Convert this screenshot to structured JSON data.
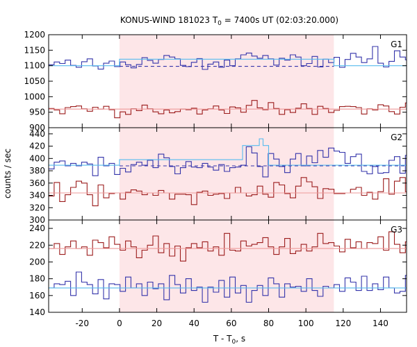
{
  "chart_data": {
    "type": "line",
    "title": {
      "main": "KONUS-WIND 181023 T",
      "sub": "0",
      "rest": " = 7400s UT (02:03:20.000)"
    },
    "xlabel": {
      "main": "T - T",
      "sub": "0",
      "rest": ", s"
    },
    "ylabel": "counts / sec",
    "xlim": [
      -38,
      154
    ],
    "x_ticks": [
      -20,
      0,
      20,
      40,
      60,
      80,
      100,
      120,
      140
    ],
    "shaded_interval": [
      0,
      115
    ],
    "colors": {
      "blue": "#3333aa",
      "red": "#9b1b1b",
      "cyan": "#55bbee",
      "pink": "#ee9999",
      "shade": "#fde6e8"
    },
    "panels": [
      {
        "label": "G1",
        "ylim": [
          900,
          1200
        ],
        "y_ticks": [
          900,
          950,
          1000,
          1050,
          1100,
          1150,
          1200
        ],
        "step": 2.944,
        "series": [
          {
            "color": "blue",
            "values": [
              1103,
              1112,
              1107,
              1118,
              1101,
              1095,
              1113,
              1122,
              1099,
              1089,
              1108,
              1115,
              1097,
              1112,
              1103,
              1093,
              1104,
              1126,
              1117,
              1108,
              1120,
              1133,
              1128,
              1122,
              1101,
              1097,
              1111,
              1123,
              1088,
              1105,
              1112,
              1095,
              1118,
              1100,
              1122,
              1135,
              1141,
              1131,
              1124,
              1133,
              1122,
              1102,
              1124,
              1118,
              1135,
              1128,
              1100,
              1107,
              1130,
              1096,
              1121,
              1110,
              1127,
              1095,
              1120,
              1140,
              1128,
              1110,
              1122,
              1162,
              1108,
              1096,
              1114,
              1148,
              1128,
              1119,
              1144,
              1109,
              1126,
              1133,
              1107,
              1140,
              1113,
              1101,
              1122,
              1137,
              1129,
              1099,
              1115,
              1131,
              1122,
              1138,
              1128,
              1100,
              1117,
              1104,
              1130,
              1118,
              1095,
              1085,
              1102,
              1094,
              1106,
              1098,
              1113,
              1090,
              1109,
              1095,
              1098,
              1118,
              1084,
              1108,
              1090,
              1116,
              1102,
              1075,
              1099,
              1107,
              1119,
              1076,
              1110,
              1085,
              1104,
              1119,
              1097,
              1078,
              1116,
              1081,
              1113,
              1092,
              1106
            ]
          },
          {
            "color": "red",
            "values": [
              962,
              957,
              945,
              965,
              968,
              970,
              961,
              953,
              966,
              960,
              969,
              958,
              932,
              951,
              943,
              961,
              955,
              973,
              961,
              951,
              945,
              957,
              948,
              952,
              960,
              958,
              963,
              944,
              957,
              961,
              970,
              957,
              946,
              967,
              964,
              950,
              972,
              988,
              964,
              958,
              981,
              962,
              943,
              958,
              949,
              963,
              977,
              962,
              943,
              969,
              962,
              949,
              956,
              968,
              969,
              968,
              965,
              944,
              961,
              957,
              974,
              970,
              952,
              944,
              966,
              980,
              954,
              968,
              965,
              954,
              951,
              970,
              945,
              962,
              954,
              985,
              962,
              937,
              966,
              984,
              961,
              946,
              958,
              947,
              982,
              974,
              963,
              951,
              976,
              970,
              945,
              960,
              953,
              940,
              982,
              953,
              969,
              945,
              958,
              965,
              942,
              958,
              955,
              968,
              962,
              970,
              961,
              949,
              963,
              958,
              955,
              962,
              970,
              948,
              981,
              963,
              941,
              966,
              958,
              970,
              977
            ]
          },
          {
            "color": "cyan",
            "segments": [
              [
                -38,
                0,
                1100
              ],
              [
                0,
                115,
                1121
              ],
              [
                115,
                154,
                1100
              ]
            ]
          },
          {
            "color": "blue",
            "dashed": true,
            "segments": [
              [
                0,
                115,
                1098
              ]
            ]
          },
          {
            "color": "pink",
            "segments": [
              [
                -38,
                154,
                960
              ]
            ]
          }
        ]
      },
      {
        "label": "G2",
        "ylim": [
          300,
          450
        ],
        "y_ticks": [
          300,
          320,
          340,
          360,
          380,
          400,
          420,
          440
        ],
        "step": 2.944,
        "series": [
          {
            "color": "blue",
            "values": [
              383,
              394,
              396,
              388,
              392,
              388,
              394,
              391,
              372,
              402,
              388,
              392,
              374,
              384,
              378,
              390,
              394,
              389,
              397,
              385,
              407,
              401,
              387,
              375,
              385,
              395,
              386,
              385,
              392,
              386,
              381,
              390,
              379,
              385,
              386,
              389,
              419,
              409,
              387,
              370,
              408,
              399,
              387,
              377,
              399,
              408,
              388,
              404,
              393,
              413,
              402,
              417,
              412,
              410,
              392,
              403,
              407,
              379,
              375,
              387,
              376,
              377,
              397,
              403,
              376,
              405,
              396,
              381,
              378,
              401,
              397,
              380,
              396,
              389,
              405,
              381,
              420,
              425,
              425,
              430,
              433,
              419,
              401,
              402,
              386,
              381,
              383,
              404,
              412,
              421,
              405,
              401,
              406,
              386,
              394,
              386,
              393,
              385,
              389,
              384,
              381,
              393,
              396,
              390,
              392,
              400,
              373,
              385,
              388,
              373,
              398,
              398,
              403,
              368,
              395,
              384,
              389,
              407,
              389,
              372,
              389
            ]
          },
          {
            "color": "red",
            "values": [
              339,
              361,
              330,
              341,
              353,
              363,
              360,
              341,
              323,
              357,
              336,
              343,
              344,
              334,
              345,
              349,
              347,
              341,
              344,
              340,
              348,
              344,
              334,
              342,
              342,
              341,
              325,
              345,
              347,
              340,
              342,
              343,
              335,
              344,
              353,
              344,
              339,
              341,
              355,
              342,
              337,
              361,
              357,
              343,
              336,
              355,
              369,
              362,
              354,
              335,
              351,
              350,
              343,
              343,
              344,
              350,
              353,
              340,
              345,
              334,
              346,
              367,
              342,
              363,
              369,
              346,
              354,
              326,
              350,
              348,
              352,
              365,
              346,
              366,
              356,
              324,
              337,
              369,
              340,
              345,
              363,
              373,
              356,
              330,
              346,
              366,
              362,
              341,
              344,
              338,
              335,
              349,
              352,
              347,
              355,
              339,
              342,
              353,
              357,
              345,
              346,
              342,
              339,
              351,
              337,
              356,
              354,
              343,
              336,
              330,
              352,
              349,
              355,
              362,
              332,
              341,
              356,
              349,
              363,
              358,
              335
            ]
          },
          {
            "color": "cyan",
            "segments": [
              [
                -38,
                0,
                389
              ],
              [
                0,
                66,
                398
              ],
              [
                66,
                75,
                421
              ],
              [
                75,
                77,
                432
              ],
              [
                77,
                80,
                421
              ],
              [
                80,
                154,
                389
              ]
            ]
          },
          {
            "color": "blue",
            "dashed": true,
            "segments": [
              [
                0,
                154,
                388
              ]
            ]
          },
          {
            "color": "pink",
            "segments": [
              [
                -38,
                154,
                344
              ]
            ]
          }
        ]
      },
      {
        "label": "G3",
        "ylim": [
          140,
          250
        ],
        "y_ticks": [
          140,
          160,
          180,
          200,
          220,
          240
        ],
        "step": 2.944,
        "series": [
          {
            "color": "red",
            "values": [
              216,
              222,
              209,
              218,
              225,
              216,
              218,
              208,
              226,
              223,
              217,
              230,
              221,
              214,
              225,
              218,
              205,
              214,
              220,
              231,
              211,
              222,
              207,
              219,
              201,
              217,
              222,
              217,
              224,
              213,
              218,
              208,
              234,
              214,
              213,
              225,
              219,
              221,
              223,
              229,
              218,
              209,
              218,
              228,
              210,
              213,
              221,
              213,
              218,
              234,
              222,
              223,
              219,
              212,
              227,
              217,
              224,
              216,
              223,
              222,
              230,
              214,
              236,
              221,
              211,
              224,
              213,
              218,
              229,
              211,
              219,
              222,
              213,
              217,
              228,
              205,
              230,
              216,
              225,
              232,
              216,
              210,
              228,
              231,
              219,
              222,
              228,
              220,
              241,
              216,
              207,
              221,
              217,
              229,
              224,
              219,
              224,
              215,
              223,
              233,
              205,
              215,
              230,
              215,
              219,
              204,
              216,
              222,
              227,
              219,
              211,
              233,
              216,
              218,
              218,
              209,
              217,
              213,
              218,
              215,
              218
            ]
          },
          {
            "color": "blue",
            "values": [
              169,
              174,
              173,
              177,
              160,
              188,
              176,
              173,
              162,
              179,
              156,
              174,
              173,
              165,
              182,
              169,
              174,
              160,
              176,
              168,
              174,
              155,
              184,
              173,
              163,
              180,
              166,
              170,
              152,
              170,
              164,
              178,
              158,
              182,
              163,
              172,
              152,
              166,
              172,
              160,
              181,
              174,
              158,
              174,
              170,
              171,
              165,
              180,
              166,
              159,
              171,
              169,
              173,
              165,
              181,
              176,
              166,
              183,
              166,
              174,
              167,
              182,
              169,
              163,
              165,
              184,
              166,
              168,
              184,
              165,
              161,
              169,
              162,
              172,
              178,
              157,
              183,
              166,
              172,
              163,
              179,
              164,
              173,
              180,
              160,
              176,
              170,
              166,
              162,
              172,
              181,
              175,
              164,
              173,
              166,
              176,
              170,
              164,
              182,
              172,
              168,
              162,
              179,
              176,
              163,
              175,
              168,
              179,
              169,
              165,
              183,
              171,
              166,
              176,
              170,
              169,
              171,
              167,
              171,
              176,
              163
            ]
          },
          {
            "color": "pink",
            "segments": [
              [
                -38,
                154,
                216
              ]
            ]
          },
          {
            "color": "cyan",
            "segments": [
              [
                -38,
                154,
                169
              ]
            ]
          }
        ]
      }
    ]
  }
}
